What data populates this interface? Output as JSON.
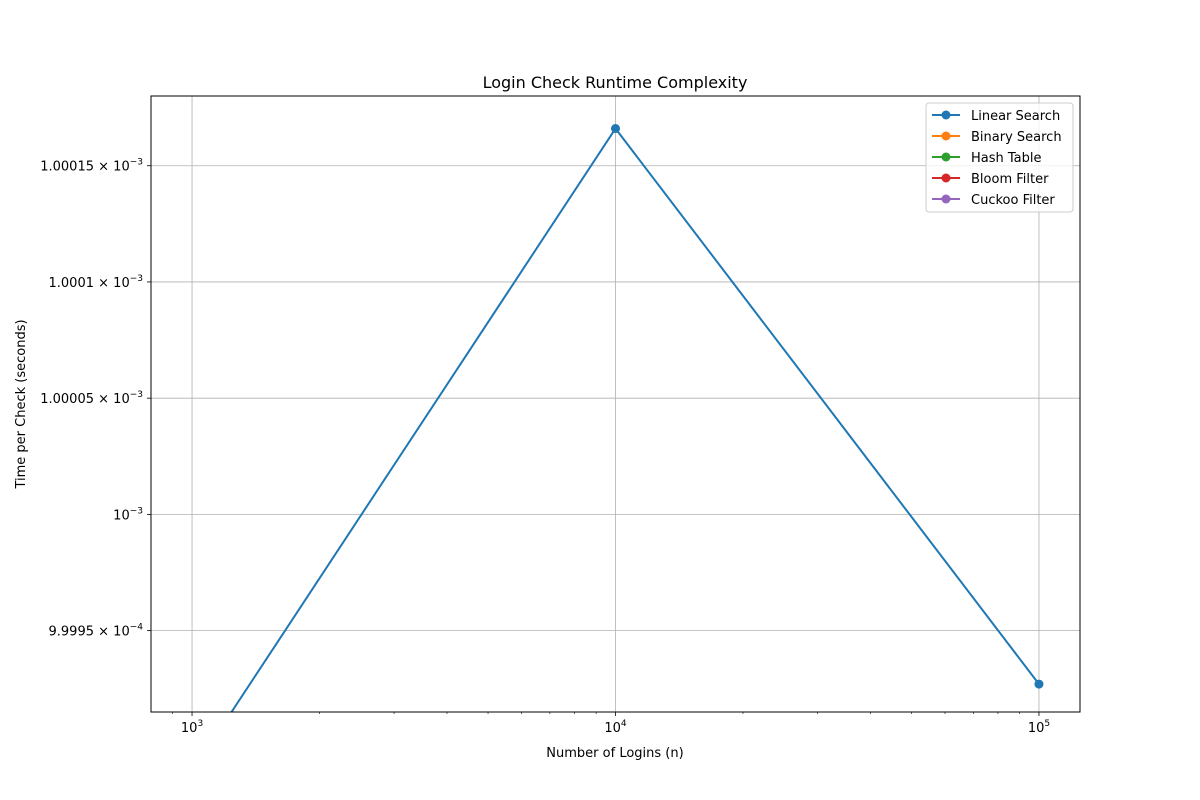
{
  "chart_data": {
    "type": "line",
    "title": "Login Check Runtime Complexity",
    "xlabel": "Number of Logins (n)",
    "ylabel": "Time per Check (seconds)",
    "x_scale": "log",
    "y_scale": "log",
    "xlim": [
      800,
      125000
    ],
    "ylim": [
      0.000999915,
      0.00100018
    ],
    "grid": true,
    "legend_placement": "top-right",
    "x_ticks": [
      {
        "value": 1000,
        "base": "10",
        "exp": "3"
      },
      {
        "value": 10000,
        "base": "10",
        "exp": "4"
      },
      {
        "value": 100000,
        "base": "10",
        "exp": "5"
      }
    ],
    "y_ticks": [
      {
        "value": 0.00099995,
        "mantissa": "9.9995",
        "base": "10",
        "exp": "−4"
      },
      {
        "value": 0.001,
        "mantissa": "",
        "base": "10",
        "exp": "−3"
      },
      {
        "value": 0.00100005,
        "mantissa": "1.00005",
        "base": "10",
        "exp": "−3"
      },
      {
        "value": 0.0010001,
        "mantissa": "1.0001",
        "base": "10",
        "exp": "−3"
      },
      {
        "value": 0.00100015,
        "mantissa": "1.00015",
        "base": "10",
        "exp": "−3"
      }
    ],
    "x": [
      1000,
      10000,
      100000
    ],
    "series": [
      {
        "name": "Linear Search",
        "color": "#1f77b4",
        "values": [
          0,
          0.001000166,
          0.000999927
        ]
      },
      {
        "name": "Binary Search",
        "color": "#ff7f0e",
        "values": [
          0,
          0,
          0
        ]
      },
      {
        "name": "Hash Table",
        "color": "#2ca02c",
        "values": [
          0,
          0,
          0
        ]
      },
      {
        "name": "Bloom Filter",
        "color": "#d62728",
        "values": [
          0,
          0,
          0
        ]
      },
      {
        "name": "Cuckoo Filter",
        "color": "#9467bd",
        "values": [
          0,
          0,
          0
        ]
      }
    ]
  }
}
